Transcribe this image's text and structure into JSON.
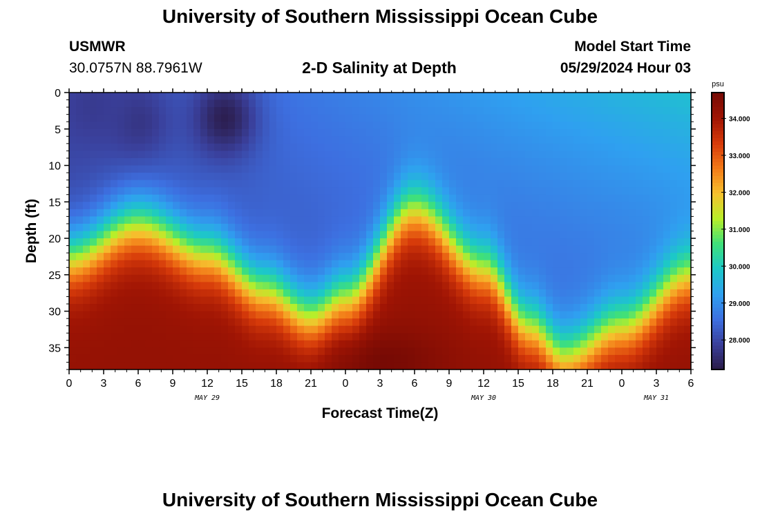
{
  "header": {
    "title": "University of Southern Mississippi Ocean Cube",
    "station": "USMWR",
    "coords": "30.0757N  88.7961W",
    "plot_title": "2-D Salinity at Depth",
    "start_label": "Model Start Time",
    "start_value": "05/29/2024 Hour 03"
  },
  "footer": {
    "title": "University of Southern Mississippi Ocean Cube"
  },
  "chart_data": {
    "type": "heatmap",
    "title": "2-D Salinity at Depth",
    "xlabel": "Forecast Time(Z)",
    "ylabel": "Depth (ft)",
    "x_hours": [
      0,
      54
    ],
    "xticks": [
      "0",
      "3",
      "6",
      "9",
      "12",
      "15",
      "18",
      "21",
      "0",
      "3",
      "6",
      "9",
      "12",
      "15",
      "18",
      "21",
      "0",
      "3",
      "6"
    ],
    "date_labels": [
      {
        "text": "MAY 29",
        "hour": 12
      },
      {
        "text": "MAY 30",
        "hour": 36
      },
      {
        "text": "MAY 31",
        "hour": 51
      }
    ],
    "ylim": [
      0,
      38
    ],
    "yticks": [
      0,
      5,
      10,
      15,
      20,
      25,
      30,
      35
    ],
    "y_inverted": true,
    "colorbar": {
      "unit": "psu",
      "range": [
        27.2,
        34.7
      ],
      "ticks": [
        "28.000",
        "29.000",
        "30.000",
        "31.000",
        "32.000",
        "33.000",
        "34.000"
      ],
      "colormap": [
        "#2a1a46",
        "#3a3f9a",
        "#3d6fe0",
        "#2fa0f0",
        "#1cc8c8",
        "#3fe07a",
        "#b8ee2a",
        "#f6c02e",
        "#f37a18",
        "#d63a0a",
        "#a01504",
        "#760a04"
      ]
    },
    "salinity_model": {
      "surface_psu": 28.0,
      "bottom_psu": 34.2,
      "halocline_depth_ft": [
        {
          "hour": 0,
          "value": 22.5
        },
        {
          "hour": 6,
          "value": 18.0
        },
        {
          "hour": 12,
          "value": 22.0
        },
        {
          "hour": 17,
          "value": 27.0
        },
        {
          "hour": 21,
          "value": 30.5
        },
        {
          "hour": 24,
          "value": 28.0
        },
        {
          "hour": 30,
          "value": 16.0
        },
        {
          "hour": 36,
          "value": 24.0
        },
        {
          "hour": 40,
          "value": 32.0
        },
        {
          "hour": 43,
          "value": 36.0
        },
        {
          "hour": 48,
          "value": 32.0
        },
        {
          "hour": 54,
          "value": 25.0
        }
      ],
      "surface_fresh_spots": [
        {
          "hour": 13.5,
          "depth": 3.5,
          "psu": 27.3
        },
        {
          "hour": 6,
          "depth": 4,
          "psu": 27.7
        },
        {
          "hour": 2,
          "depth": 2,
          "psu": 27.8
        }
      ]
    }
  }
}
